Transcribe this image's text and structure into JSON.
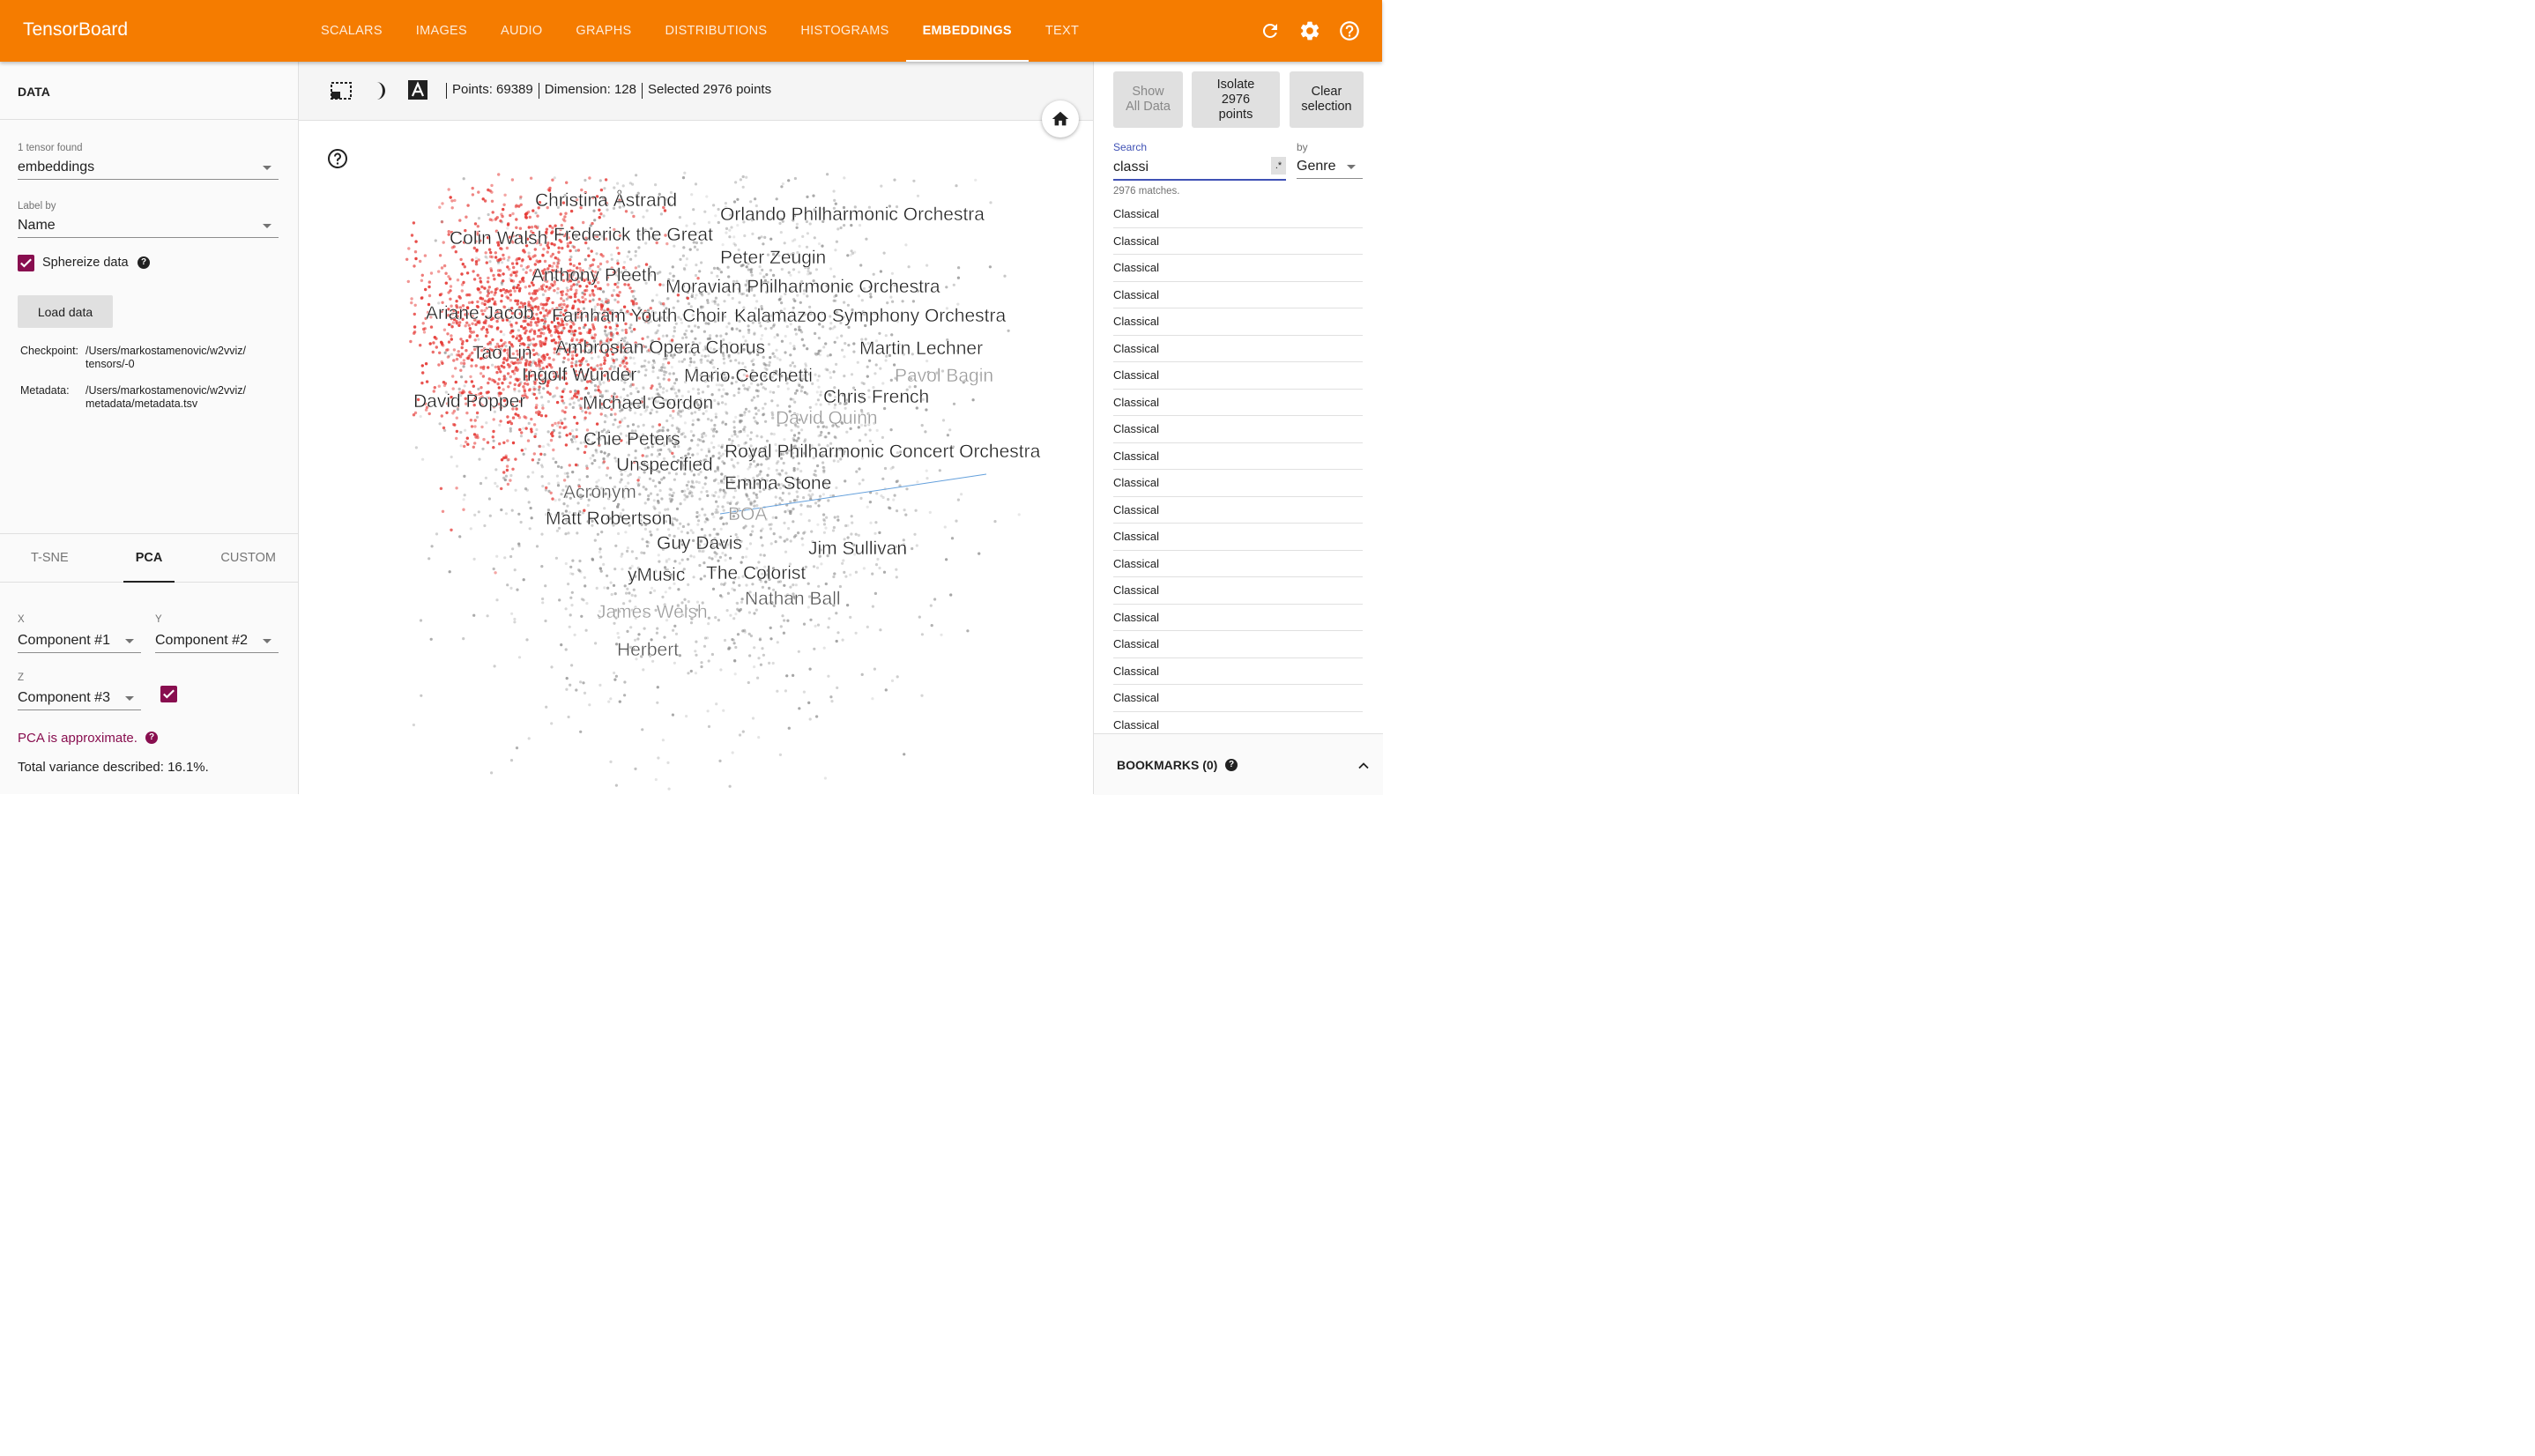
{
  "app": {
    "title": "TensorBoard"
  },
  "nav": {
    "tabs": [
      {
        "label": "SCALARS"
      },
      {
        "label": "IMAGES"
      },
      {
        "label": "AUDIO"
      },
      {
        "label": "GRAPHS"
      },
      {
        "label": "DISTRIBUTIONS"
      },
      {
        "label": "HISTOGRAMS"
      },
      {
        "label": "EMBEDDINGS",
        "active": true
      },
      {
        "label": "TEXT"
      }
    ],
    "icons": [
      "refresh-icon",
      "settings-icon",
      "help-icon"
    ]
  },
  "data_panel": {
    "title": "DATA",
    "tensor_found_label": "1 tensor found",
    "tensor_value": "embeddings",
    "label_by_label": "Label by",
    "label_by_value": "Name",
    "sphereize_label": "Sphereize data",
    "sphereize_checked": true,
    "load_button": "Load data",
    "checkpoint_key": "Checkpoint:",
    "checkpoint_line1": "/Users/markostamenovic/w2vviz/",
    "checkpoint_line2": "tensors/-0",
    "metadata_key": "Metadata:",
    "metadata_line1": "/Users/markostamenovic/w2vviz/",
    "metadata_line2": "metadata/metadata.tsv"
  },
  "projection": {
    "tabs": [
      {
        "label": "T-SNE"
      },
      {
        "label": "PCA",
        "active": true
      },
      {
        "label": "CUSTOM"
      }
    ],
    "x_label": "X",
    "x_value": "Component #1",
    "y_label": "Y",
    "y_value": "Component #2",
    "z_label": "Z",
    "z_value": "Component #3",
    "z_checked": true,
    "approx_note": "PCA is approximate.",
    "variance": "Total variance described: 16.1%."
  },
  "toolbar": {
    "icons": [
      "selection-box-icon",
      "night-mode-icon",
      "labels-toggle-icon"
    ],
    "points": "Points: 69389",
    "dimension": "Dimension: 128",
    "selected": "Selected 2976 points"
  },
  "colors": {
    "accent": "#f57c00",
    "selected": "#e53935",
    "unselected": "#9e9e9e",
    "checkbox": "#880e4f",
    "focus": "#3f51b5"
  },
  "plot_labels": [
    {
      "text": "Christina Åstrand",
      "shade": "dark"
    },
    {
      "text": "Orlando Philharmonic Orchestra",
      "shade": "dark"
    },
    {
      "text": "Colin Walsh",
      "shade": "dark"
    },
    {
      "text": "Frederick the Great",
      "shade": "dark"
    },
    {
      "text": "Peter Zeugin",
      "shade": "dark"
    },
    {
      "text": "Anthony Pleeth",
      "shade": "dark"
    },
    {
      "text": "Moravian Philharmonic Orchestra",
      "shade": "dark"
    },
    {
      "text": "Ariane Jacob",
      "shade": "dark"
    },
    {
      "text": "Farnham Youth Choir",
      "shade": "dark"
    },
    {
      "text": "Kalamazoo Symphony Orchestra",
      "shade": "dark"
    },
    {
      "text": "Tao Lin",
      "shade": "dark"
    },
    {
      "text": "Ambrosian Opera Chorus",
      "shade": "dark"
    },
    {
      "text": "Martin Lechner",
      "shade": "dark"
    },
    {
      "text": "Ingolf Wunder",
      "shade": "dark"
    },
    {
      "text": "Mario Cecchetti",
      "shade": "dark"
    },
    {
      "text": "Pavol Bagin",
      "shade": "light"
    },
    {
      "text": "David Popper",
      "shade": "dark"
    },
    {
      "text": "Michael Gordon",
      "shade": "dark"
    },
    {
      "text": "Chris French",
      "shade": "dark"
    },
    {
      "text": "David Quinn",
      "shade": "light"
    },
    {
      "text": "Chie Peters",
      "shade": "dark"
    },
    {
      "text": "Royal Philharmonic Concert Orchestra",
      "shade": "dark"
    },
    {
      "text": "Unspecified",
      "shade": "dark"
    },
    {
      "text": "Emma Stone",
      "shade": "dark"
    },
    {
      "text": "Acronym",
      "shade": "mid"
    },
    {
      "text": "Matt Robertson",
      "shade": "dark"
    },
    {
      "text": "BOA",
      "shade": "light"
    },
    {
      "text": "Guy Davis",
      "shade": "dark"
    },
    {
      "text": "Jim Sullivan",
      "shade": "dark"
    },
    {
      "text": "yMusic",
      "shade": "dark"
    },
    {
      "text": "The Colorist",
      "shade": "dark"
    },
    {
      "text": "Nathan Ball",
      "shade": "mid"
    },
    {
      "text": "James Welsh",
      "shade": "light"
    },
    {
      "text": "Herbert",
      "shade": "mid"
    }
  ],
  "inspector": {
    "show_all_line1": "Show",
    "show_all_line2": "All Data",
    "isolate_line1": "Isolate",
    "isolate_line2": "2976",
    "isolate_line3": "points",
    "clear_line1": "Clear",
    "clear_line2": "selection",
    "search_label": "Search",
    "search_value": "classi",
    "regex_label": ".*",
    "by_label": "by",
    "by_value": "Genre",
    "matches": "2976 matches.",
    "results": [
      "Classical",
      "Classical",
      "Classical",
      "Classical",
      "Classical",
      "Classical",
      "Classical",
      "Classical",
      "Classical",
      "Classical",
      "Classical",
      "Classical",
      "Classical",
      "Classical",
      "Classical",
      "Classical",
      "Classical",
      "Classical",
      "Classical",
      "Classical"
    ],
    "bookmarks": "BOOKMARKS (0)"
  }
}
